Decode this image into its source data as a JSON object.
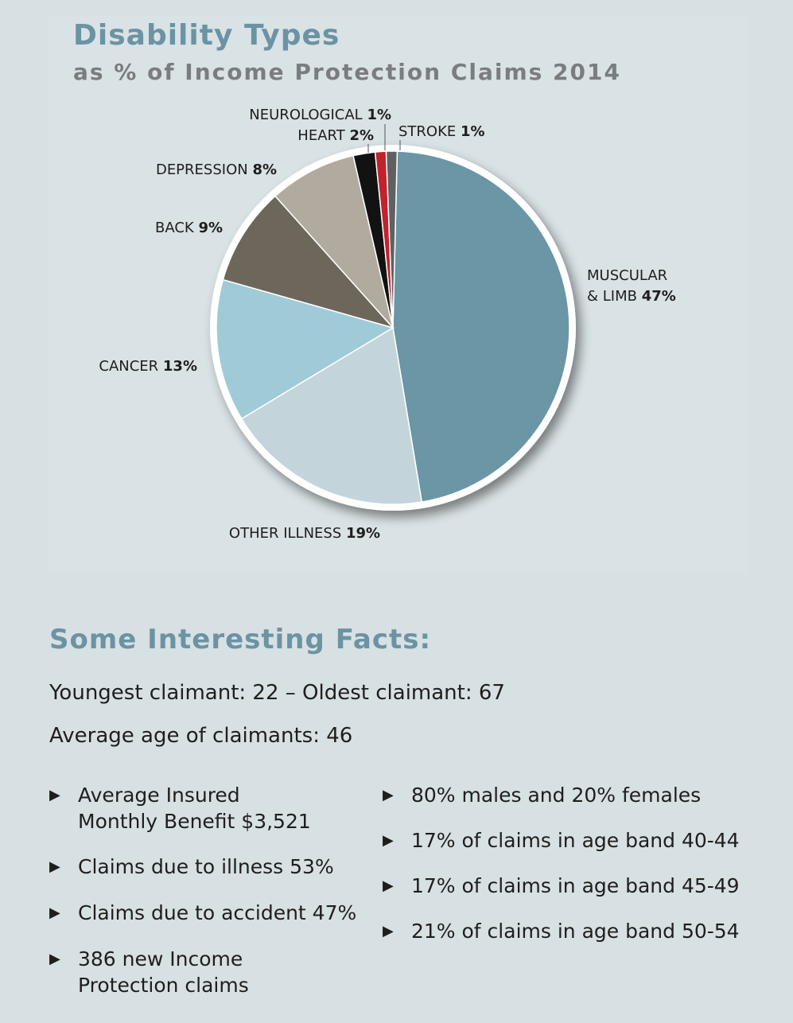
{
  "chart_data": {
    "type": "pie",
    "title": "Disability Types",
    "subtitle": "as % of Income Protection Claims 2014",
    "slices": [
      {
        "name": "MUSCULAR & LIMB",
        "label_line1": "MUSCULAR",
        "label_line2": "& LIMB",
        "value": 47,
        "pct_text": "47%",
        "color": "#6a96a6"
      },
      {
        "name": "OTHER ILLNESS",
        "value": 19,
        "pct_text": "19%",
        "color": "#c3d5db"
      },
      {
        "name": "CANCER",
        "value": 13,
        "pct_text": "13%",
        "color": "#9fcbd8"
      },
      {
        "name": "BACK",
        "value": 9,
        "pct_text": "9%",
        "color": "#6d665a"
      },
      {
        "name": "DEPRESSION",
        "value": 8,
        "pct_text": "8%",
        "color": "#b1aa9e"
      },
      {
        "name": "HEART",
        "value": 2,
        "pct_text": "2%",
        "color": "#121212"
      },
      {
        "name": "NEUROLOGICAL",
        "value": 1,
        "pct_text": "1%",
        "color": "#c0232b"
      },
      {
        "name": "STROKE",
        "value": 1,
        "pct_text": "1%",
        "color": "#5f6062"
      }
    ]
  },
  "facts": {
    "title": "Some Interesting Facts:",
    "line1": "Youngest claimant: 22 – Oldest claimant: 67",
    "line2": "Average age of claimants: 46",
    "left": [
      [
        "Average Insured",
        "Monthly Benefit $3,521"
      ],
      [
        "Claims due to illness 53%"
      ],
      [
        "Claims due to accident 47%"
      ],
      [
        "386 new Income",
        "Protection claims"
      ]
    ],
    "right": [
      [
        "80% males and 20% females"
      ],
      [
        "17% of claims in age band 40-44"
      ],
      [
        "17% of claims in age band 45-49"
      ],
      [
        "21% of claims in age band 50-54"
      ]
    ]
  }
}
